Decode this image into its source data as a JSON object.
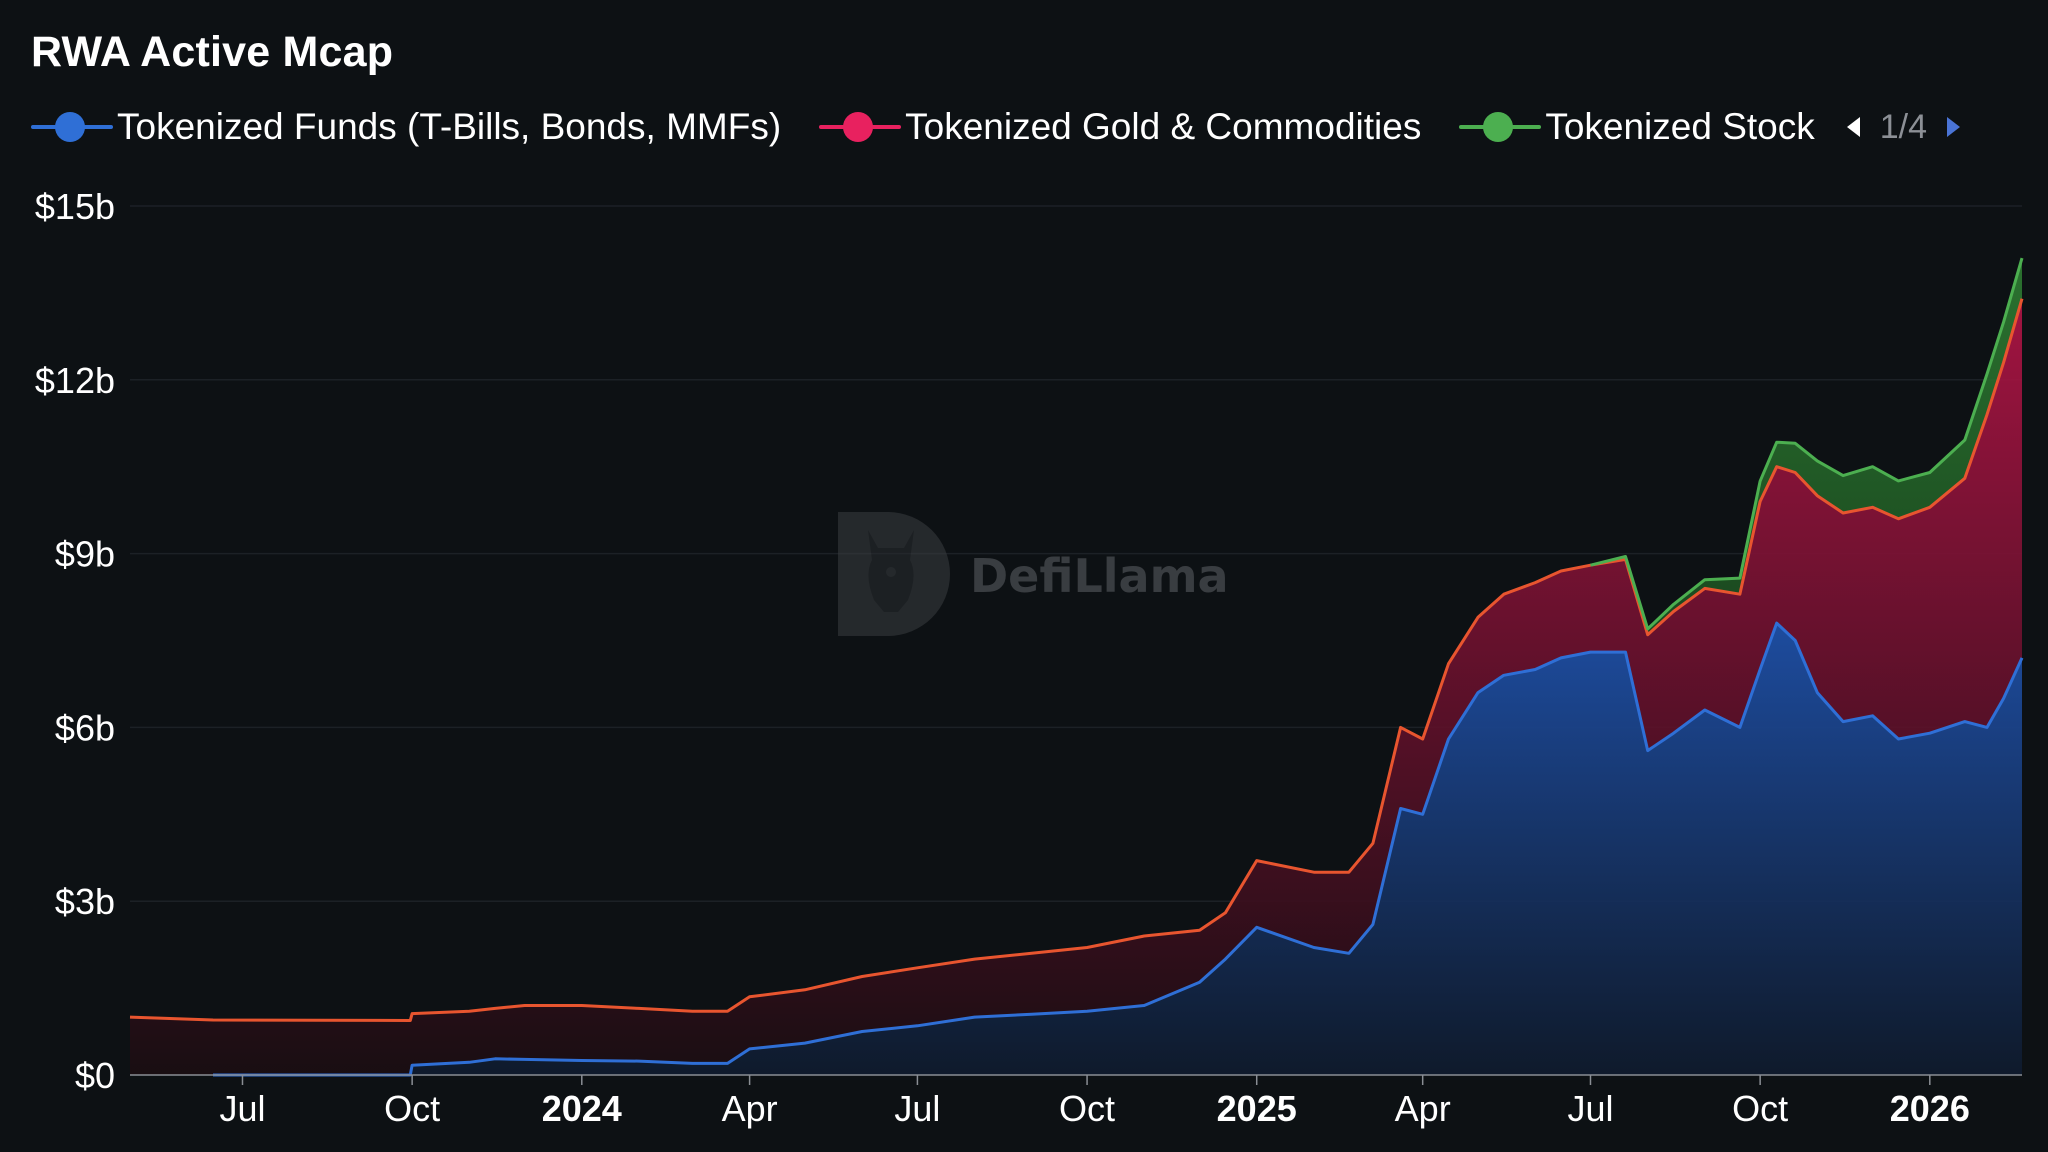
{
  "title": "RWA Active Mcap",
  "legend": {
    "items": [
      {
        "label": "Tokenized Funds (T-Bills, Bonds, MMFs)",
        "color": "#2f6fd6"
      },
      {
        "label": "Tokenized Gold & Commodities",
        "color": "#e8215f"
      },
      {
        "label": "Tokenized Stock",
        "color": "#4caf50"
      }
    ],
    "page": "1/4"
  },
  "watermark": {
    "text": "DefiLlama",
    "icon": "llama-logo-icon"
  },
  "chart_data": {
    "type": "area",
    "stacked": true,
    "title": "RWA Active Mcap",
    "xlabel": "",
    "ylabel": "",
    "ylim": [
      0,
      15
    ],
    "y_unit": "billion USD",
    "y_ticks": [
      {
        "value": 0,
        "label": "$0"
      },
      {
        "value": 3,
        "label": "$3b"
      },
      {
        "value": 6,
        "label": "$6b"
      },
      {
        "value": 9,
        "label": "$9b"
      },
      {
        "value": 12,
        "label": "$12b"
      },
      {
        "value": 15,
        "label": "$15b"
      }
    ],
    "x_range": [
      "2023-05-01",
      "2026-02-20"
    ],
    "x_ticks": [
      {
        "date": "2023-07-01",
        "label": "Jul",
        "bold": false
      },
      {
        "date": "2023-10-01",
        "label": "Oct",
        "bold": false
      },
      {
        "date": "2024-01-01",
        "label": "2024",
        "bold": true
      },
      {
        "date": "2024-04-01",
        "label": "Apr",
        "bold": false
      },
      {
        "date": "2024-07-01",
        "label": "Jul",
        "bold": false
      },
      {
        "date": "2024-10-01",
        "label": "Oct",
        "bold": false
      },
      {
        "date": "2025-01-01",
        "label": "2025",
        "bold": true
      },
      {
        "date": "2025-04-01",
        "label": "Apr",
        "bold": false
      },
      {
        "date": "2025-07-01",
        "label": "Jul",
        "bold": false
      },
      {
        "date": "2025-10-01",
        "label": "Oct",
        "bold": false
      },
      {
        "date": "2026-01-01",
        "label": "2026",
        "bold": true
      }
    ],
    "grid": "horizontal",
    "legend_position": "top-left",
    "series": [
      {
        "name": "Tokenized Funds (T-Bills, Bonds, MMFs)",
        "color": "#2f6fd6",
        "points": [
          [
            "2023-06-15",
            0.0
          ],
          [
            "2023-09-30",
            0.0
          ],
          [
            "2023-10-01",
            0.17
          ],
          [
            "2023-11-01",
            0.22
          ],
          [
            "2023-11-15",
            0.28
          ],
          [
            "2023-12-01",
            0.27
          ],
          [
            "2024-01-01",
            0.25
          ],
          [
            "2024-02-01",
            0.24
          ],
          [
            "2024-03-01",
            0.2
          ],
          [
            "2024-03-20",
            0.2
          ],
          [
            "2024-04-01",
            0.45
          ],
          [
            "2024-05-01",
            0.55
          ],
          [
            "2024-06-01",
            0.75
          ],
          [
            "2024-07-01",
            0.85
          ],
          [
            "2024-08-01",
            1.0
          ],
          [
            "2024-09-01",
            1.05
          ],
          [
            "2024-10-01",
            1.1
          ],
          [
            "2024-11-01",
            1.2
          ],
          [
            "2024-12-01",
            1.6
          ],
          [
            "2024-12-15",
            2.0
          ],
          [
            "2025-01-01",
            2.55
          ],
          [
            "2025-02-01",
            2.2
          ],
          [
            "2025-02-20",
            2.1
          ],
          [
            "2025-03-05",
            2.6
          ],
          [
            "2025-03-20",
            4.6
          ],
          [
            "2025-04-01",
            4.5
          ],
          [
            "2025-04-15",
            5.8
          ],
          [
            "2025-05-01",
            6.6
          ],
          [
            "2025-05-15",
            6.9
          ],
          [
            "2025-06-01",
            7.0
          ],
          [
            "2025-06-15",
            7.2
          ],
          [
            "2025-07-01",
            7.3
          ],
          [
            "2025-07-20",
            7.3
          ],
          [
            "2025-08-01",
            5.6
          ],
          [
            "2025-08-15",
            5.9
          ],
          [
            "2025-09-01",
            6.3
          ],
          [
            "2025-09-20",
            6.0
          ],
          [
            "2025-10-01",
            7.0
          ],
          [
            "2025-10-10",
            7.8
          ],
          [
            "2025-10-20",
            7.5
          ],
          [
            "2025-11-01",
            6.6
          ],
          [
            "2025-11-15",
            6.1
          ],
          [
            "2025-12-01",
            6.2
          ],
          [
            "2025-12-15",
            5.8
          ],
          [
            "2026-01-01",
            5.9
          ],
          [
            "2026-01-20",
            6.1
          ],
          [
            "2026-02-01",
            6.0
          ],
          [
            "2026-02-10",
            6.5
          ],
          [
            "2026-02-20",
            7.2
          ]
        ]
      },
      {
        "name": "Tokenized Gold & Commodities",
        "color": "#e8215f",
        "points": [
          [
            "2023-05-01",
            1.0
          ],
          [
            "2023-06-15",
            0.95
          ],
          [
            "2023-09-30",
            0.94
          ],
          [
            "2023-10-01",
            0.89
          ],
          [
            "2023-11-01",
            0.88
          ],
          [
            "2023-11-15",
            0.87
          ],
          [
            "2023-12-01",
            0.93
          ],
          [
            "2024-01-01",
            0.95
          ],
          [
            "2024-02-01",
            0.91
          ],
          [
            "2024-03-01",
            0.9
          ],
          [
            "2024-03-20",
            0.9
          ],
          [
            "2024-04-01",
            0.9
          ],
          [
            "2024-05-01",
            0.92
          ],
          [
            "2024-06-01",
            0.95
          ],
          [
            "2024-07-01",
            1.0
          ],
          [
            "2024-08-01",
            1.0
          ],
          [
            "2024-09-01",
            1.05
          ],
          [
            "2024-10-01",
            1.1
          ],
          [
            "2024-11-01",
            1.2
          ],
          [
            "2024-12-01",
            0.9
          ],
          [
            "2024-12-15",
            0.8
          ],
          [
            "2025-01-01",
            1.15
          ],
          [
            "2025-02-01",
            1.3
          ],
          [
            "2025-02-20",
            1.4
          ],
          [
            "2025-03-05",
            1.4
          ],
          [
            "2025-03-20",
            1.4
          ],
          [
            "2025-04-01",
            1.3
          ],
          [
            "2025-04-15",
            1.3
          ],
          [
            "2025-05-01",
            1.3
          ],
          [
            "2025-05-15",
            1.4
          ],
          [
            "2025-06-01",
            1.5
          ],
          [
            "2025-06-15",
            1.5
          ],
          [
            "2025-07-01",
            1.5
          ],
          [
            "2025-07-20",
            1.6
          ],
          [
            "2025-08-01",
            2.0
          ],
          [
            "2025-08-15",
            2.1
          ],
          [
            "2025-09-01",
            2.1
          ],
          [
            "2025-09-20",
            2.3
          ],
          [
            "2025-10-01",
            2.9
          ],
          [
            "2025-10-10",
            2.7
          ],
          [
            "2025-10-20",
            2.9
          ],
          [
            "2025-11-01",
            3.4
          ],
          [
            "2025-11-15",
            3.6
          ],
          [
            "2025-12-01",
            3.6
          ],
          [
            "2025-12-15",
            3.8
          ],
          [
            "2026-01-01",
            3.9
          ],
          [
            "2026-01-20",
            4.2
          ],
          [
            "2026-02-01",
            5.4
          ],
          [
            "2026-02-10",
            5.8
          ],
          [
            "2026-02-20",
            6.2
          ]
        ]
      },
      {
        "name": "Tokenized Stock",
        "color": "#4caf50",
        "points": [
          [
            "2025-07-01",
            0.0
          ],
          [
            "2025-07-20",
            0.05
          ],
          [
            "2025-08-01",
            0.1
          ],
          [
            "2025-09-01",
            0.15
          ],
          [
            "2025-10-01",
            0.35
          ],
          [
            "2025-11-01",
            0.6
          ],
          [
            "2025-12-01",
            0.7
          ],
          [
            "2026-01-01",
            0.6
          ],
          [
            "2026-02-01",
            0.7
          ],
          [
            "2026-02-20",
            0.7
          ]
        ]
      }
    ]
  }
}
